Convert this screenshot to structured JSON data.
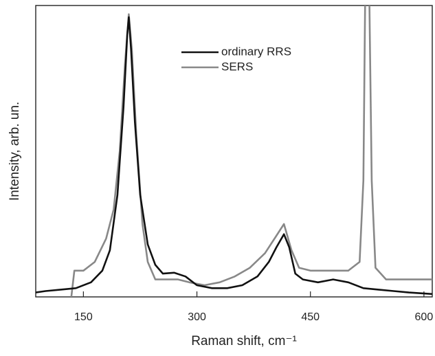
{
  "chart_data": {
    "type": "line",
    "x_label": "Raman shift, cm⁻¹",
    "y_label": "Intensity, arb. un.",
    "xlim": [
      87,
      611
    ],
    "ylim": [
      0,
      100
    ],
    "xticks": [
      150,
      300,
      450,
      600
    ],
    "legend": "top",
    "series": [
      {
        "name": "ordinary RRS",
        "color": "#111111",
        "x": [
          87,
          100,
          120,
          140,
          160,
          175,
          185,
          195,
          203,
          208,
          210,
          213,
          218,
          225,
          235,
          245,
          255,
          270,
          285,
          300,
          320,
          340,
          360,
          380,
          395,
          405,
          415,
          422,
          430,
          440,
          460,
          480,
          500,
          520,
          540,
          560,
          580,
          611
        ],
        "values": [
          1.5,
          2,
          2.5,
          3,
          5,
          9,
          16,
          35,
          65,
          90,
          96,
          85,
          60,
          35,
          18,
          11,
          8,
          8.3,
          7,
          4,
          3,
          3,
          4,
          7,
          12,
          17,
          21.5,
          17,
          8,
          6,
          5,
          6,
          5,
          3,
          2.5,
          2,
          1.5,
          1
        ]
      },
      {
        "name": "SERS",
        "color": "#888888",
        "x": [
          134,
          138,
          150,
          165,
          180,
          190,
          198,
          205,
          210,
          214,
          220,
          228,
          235,
          245,
          260,
          275,
          290,
          310,
          330,
          350,
          370,
          390,
          405,
          415,
          425,
          435,
          450,
          480,
          500,
          515,
          520,
          523,
          527,
          531,
          536,
          550,
          570,
          590,
          611
        ],
        "values": [
          0,
          9,
          9,
          12,
          20,
          30,
          50,
          80,
          97,
          85,
          55,
          25,
          12,
          6,
          6,
          6,
          5,
          4,
          5,
          7,
          10,
          15,
          21,
          25,
          16,
          10,
          9,
          9,
          9,
          12,
          40,
          120,
          120,
          40,
          10,
          6,
          6,
          6,
          6
        ]
      }
    ]
  }
}
